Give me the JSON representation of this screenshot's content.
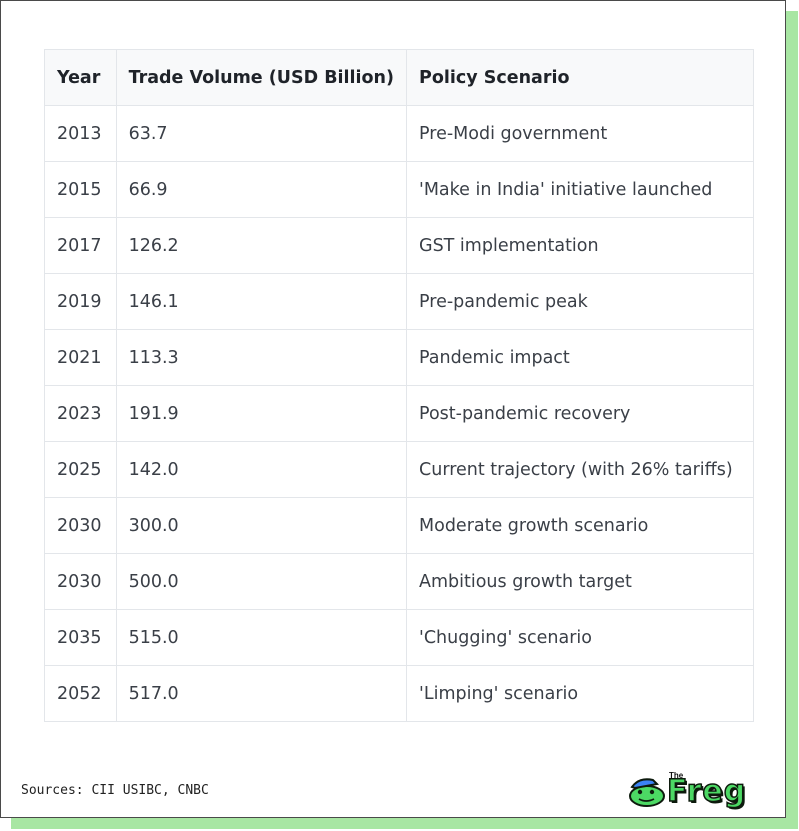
{
  "table": {
    "headers": [
      "Year",
      "Trade Volume (USD Billion)",
      "Policy Scenario"
    ],
    "rows": [
      {
        "year": "2013",
        "volume": "63.7",
        "scenario": "Pre-Modi government"
      },
      {
        "year": "2015",
        "volume": "66.9",
        "scenario": "'Make in India' initiative launched"
      },
      {
        "year": "2017",
        "volume": "126.2",
        "scenario": "GST implementation"
      },
      {
        "year": "2019",
        "volume": "146.1",
        "scenario": "Pre-pandemic peak"
      },
      {
        "year": "2021",
        "volume": "113.3",
        "scenario": "Pandemic impact"
      },
      {
        "year": "2023",
        "volume": "191.9",
        "scenario": "Post-pandemic recovery"
      },
      {
        "year": "2025",
        "volume": "142.0",
        "scenario": "Current trajectory (with 26% tariffs)"
      },
      {
        "year": "2030",
        "volume": "300.0",
        "scenario": "Moderate growth scenario"
      },
      {
        "year": "2030",
        "volume": "500.0",
        "scenario": "Ambitious growth target"
      },
      {
        "year": "2035",
        "volume": "515.0",
        "scenario": "'Chugging' scenario"
      },
      {
        "year": "2052",
        "volume": "517.0",
        "scenario": "'Limping' scenario"
      }
    ]
  },
  "footer": {
    "sources": "Sources: CII USIBC, CNBC",
    "logo_small": "The",
    "logo_text": "Freg",
    "logo_icon": "frog-mascot-icon"
  },
  "colors": {
    "shadow": "#a8e6a3",
    "logo_green": "#4cd964",
    "cap_blue": "#3b82f6"
  }
}
